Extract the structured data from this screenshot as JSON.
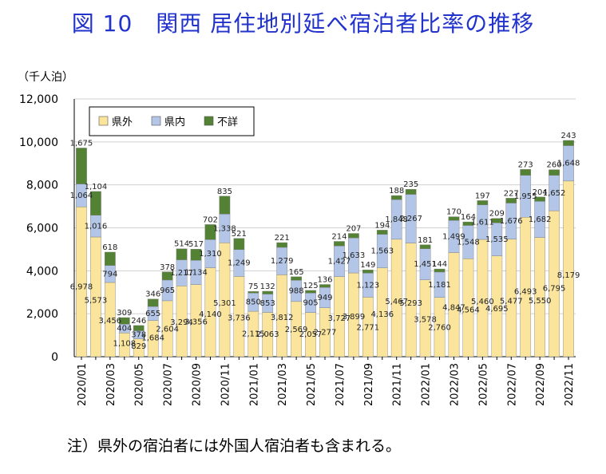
{
  "title": "図 10　関西 居住地別延べ宿泊者比率の推移",
  "note": "注）県外の宿泊者には外国人宿泊者も含まれる。",
  "chart_data": {
    "type": "bar",
    "stacked": true,
    "unit_label": "（千人泊）",
    "ylim": [
      0,
      12000
    ],
    "yticks": [
      "0",
      "2,000",
      "4,000",
      "6,000",
      "8,000",
      "10,000",
      "12,000"
    ],
    "ytick_values": [
      0,
      2000,
      4000,
      6000,
      8000,
      10000,
      12000
    ],
    "legend_position": "top-left",
    "grid": true,
    "x_tick_labels": [
      "2020/01",
      "2020/03",
      "2020/05",
      "2020/07",
      "2020/09",
      "2020/11",
      "2021/01",
      "2021/03",
      "2021/05",
      "2021/07",
      "2021/09",
      "2021/11",
      "2022/01",
      "2022/03",
      "2022/05",
      "2022/07",
      "2022/09",
      "2022/11"
    ],
    "categories": [
      "2020/01",
      "2020/02",
      "2020/03",
      "2020/04",
      "2020/05",
      "2020/06",
      "2020/07",
      "2020/08",
      "2020/09",
      "2020/10",
      "2020/11",
      "2020/12",
      "2021/01",
      "2021/02",
      "2021/03",
      "2021/04",
      "2021/05",
      "2021/06",
      "2021/07",
      "2021/08",
      "2021/09",
      "2021/10",
      "2021/11",
      "2021/12",
      "2022/01",
      "2022/02",
      "2022/03",
      "2022/04",
      "2022/05",
      "2022/06",
      "2022/07",
      "2022/08",
      "2022/09",
      "2022/10",
      "2022/11"
    ],
    "series": [
      {
        "name": "県外",
        "color": "#fbe59c",
        "values": [
          6978,
          5573,
          3456,
          1108,
          829,
          1684,
          2604,
          3294,
          3356,
          4140,
          5301,
          3736,
          2115,
          2063,
          3812,
          2569,
          2057,
          2277,
          3727,
          3899,
          2771,
          4136,
          5467,
          5293,
          3578,
          2760,
          4847,
          4564,
          5460,
          4695,
          5477,
          6493,
          5550,
          6795,
          8179
        ],
        "labels": [
          "6,978",
          "5,573",
          "3,456",
          "1,108",
          "829",
          "1,684",
          "2,604",
          "3,294",
          "3,356",
          "4,140",
          "5,301",
          "3,736",
          "2,115",
          "2,063",
          "3,812",
          "2,569",
          "2,057",
          "2,277",
          "3,727",
          "3,899",
          "2,771",
          "4,136",
          "5,467",
          "5,293",
          "3,578",
          "2,760",
          "4,847",
          "4,564",
          "5,460",
          "4,695",
          "5,477",
          "6,493",
          "5,550",
          "6,795",
          "8,179"
        ]
      },
      {
        "name": "県内",
        "color": "#b3c6e7",
        "values": [
          1064,
          1016,
          794,
          404,
          378,
          655,
          965,
          1217,
          1134,
          1310,
          1338,
          1249,
          850,
          853,
          1279,
          988,
          905,
          949,
          1427,
          1633,
          1123,
          1563,
          1848,
          2267,
          1451,
          1181,
          1499,
          1548,
          1611,
          1535,
          1676,
          1955,
          1682,
          1652,
          1648
        ],
        "labels": [
          "1,064",
          "1,016",
          "794",
          "404",
          "378",
          "655",
          "965",
          "1,217",
          "1,134",
          "1,310",
          "1,338",
          "1,249",
          "850",
          "853",
          "1,279",
          "988",
          "905",
          "949",
          "1,427",
          "1,633",
          "1,123",
          "1,563",
          "1,848",
          "2,267",
          "1,451",
          "1,181",
          "1,499",
          "1,548",
          "1,611",
          "1,535",
          "1,676",
          "1,955",
          "1,682",
          "1,652",
          "1,648"
        ]
      },
      {
        "name": "不詳",
        "color": "#548235",
        "values": [
          1675,
          1104,
          618,
          309,
          246,
          346,
          378,
          514,
          517,
          702,
          835,
          521,
          75,
          132,
          221,
          165,
          125,
          136,
          214,
          207,
          149,
          194,
          188,
          235,
          181,
          144,
          170,
          164,
          197,
          209,
          227,
          273,
          204,
          260,
          243
        ],
        "labels": [
          "1,675",
          "1,104",
          "618",
          "309",
          "246",
          "346",
          "378",
          "514",
          "517",
          "702",
          "835",
          "521",
          "75",
          "132",
          "221",
          "165",
          "125",
          "136",
          "214",
          "207",
          "149",
          "194",
          "188",
          "235",
          "181",
          "144",
          "170",
          "164",
          "197",
          "209",
          "227",
          "273",
          "204",
          "260",
          "243"
        ]
      }
    ]
  }
}
